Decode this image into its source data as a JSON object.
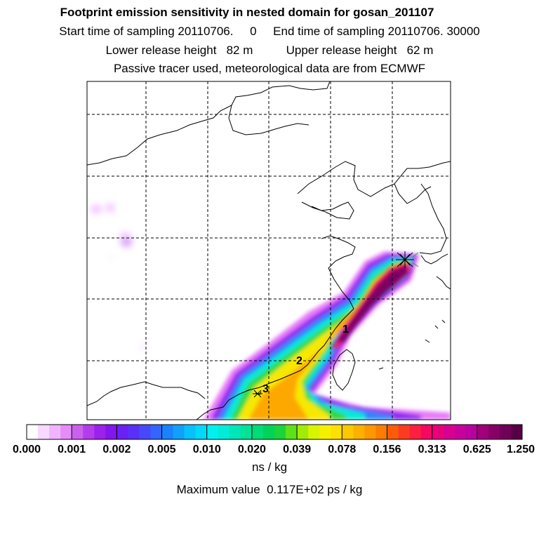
{
  "header": {
    "title": "Footprint emission sensitivity in nested domain for gosan_201107",
    "sampling_line": "Start time of sampling 20110706.     0     End time of sampling 20110706. 30000",
    "release_line": "Lower release height   82 m          Upper release height   62 m",
    "tracer_line": "Passive tracer used, meteorological data are from ECMWF"
  },
  "map": {
    "markers": [
      {
        "label": "1"
      },
      {
        "label": "2"
      },
      {
        "label": "3"
      }
    ],
    "receptor_icon": "star-burst-icon"
  },
  "colorbar": {
    "labels": [
      "0.000",
      "0.001",
      "0.002",
      "0.005",
      "0.010",
      "0.020",
      "0.039",
      "0.078",
      "0.156",
      "0.313",
      "0.625",
      "1.250"
    ],
    "colors": [
      "#ffffff",
      "#f8d8ff",
      "#f0b4ff",
      "#e68cf8",
      "#cc60ee",
      "#b43cec",
      "#9a22ec",
      "#8216ec",
      "#6a20f2",
      "#5a30f8",
      "#4848fa",
      "#3464fc",
      "#1a82fc",
      "#10a0fc",
      "#08c0fc",
      "#00d8f8",
      "#00f0f0",
      "#00ecd8",
      "#00e6b8",
      "#00e298",
      "#00dc78",
      "#00d25a",
      "#1ad43a",
      "#60e018",
      "#a0ec08",
      "#d8f400",
      "#f4f000",
      "#fce000",
      "#fcc800",
      "#fcb000",
      "#fc9800",
      "#fc7c00",
      "#fc5c08",
      "#fc3c20",
      "#fc2040",
      "#f40860",
      "#e80078",
      "#d80090",
      "#c8009c",
      "#b800a0",
      "#a0007a",
      "#880066",
      "#700058",
      "#580046"
    ],
    "unit": "ns / kg"
  },
  "footer": {
    "max_value": "Maximum value  0.117E+02 ps / kg"
  }
}
